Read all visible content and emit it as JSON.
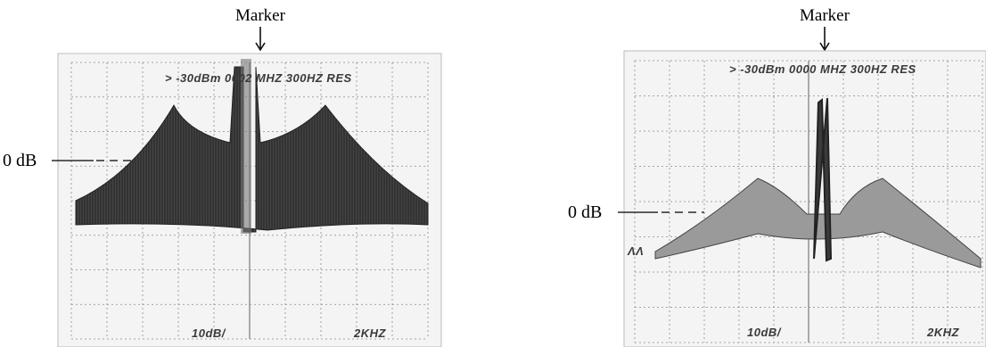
{
  "panels": [
    {
      "marker_label": "Marker",
      "reference_label": "0 dB",
      "header_text": "> -30dBm  0002 MHZ 300HZ RES",
      "scale_text": "10dB/",
      "span_text": "2KHZ"
    },
    {
      "marker_label": "Marker",
      "reference_label": "0 dB",
      "header_text": "> -30dBm  0000 MHZ 300HZ RES",
      "scale_text": "10dB/",
      "span_text": "2KHZ"
    }
  ],
  "colors": {
    "screen_background": "#f2f2f2",
    "grid": "#8a8a8a",
    "trace": "#2f2f2f"
  }
}
